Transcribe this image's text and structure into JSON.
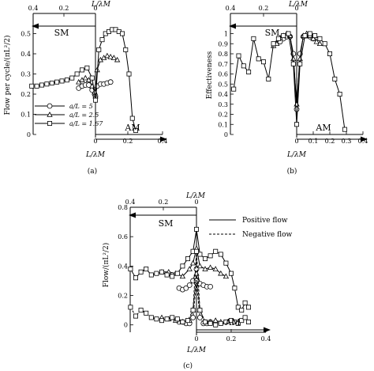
{
  "panels": [
    {
      "id": "a",
      "caption": "(a)",
      "ylabel": "Flow per cycle/(πL²/2)",
      "xlabel_bottom": "L/λM",
      "xlabel_top": "L/λM",
      "sm_label": "SM",
      "am_label": "AM",
      "legend": [
        "a/L = 5",
        "a/L = 2.5",
        "a/L = 1.67"
      ],
      "top_ticks": [
        "0.4",
        "0.2",
        "0"
      ],
      "bottom_ticks": [
        "0",
        "0.2",
        "0.4"
      ],
      "y_ticks": [
        "0",
        "0.1",
        "0.2",
        "0.3",
        "0.4",
        "0.5"
      ]
    },
    {
      "id": "b",
      "caption": "(b)",
      "ylabel": "Effectiveness",
      "xlabel_bottom": "L/λM",
      "xlabel_top": "L/λM",
      "sm_label": "SM",
      "am_label": "AM",
      "top_ticks": [
        "0.4",
        "0.2",
        "0"
      ],
      "bottom_ticks": [
        "0",
        "0.1",
        "0.2",
        "0.3",
        "0.4"
      ],
      "y_ticks": [
        "0",
        "0.1",
        "0.2",
        "0.3",
        "0.4",
        "0.5",
        "0.6",
        "0.7",
        "0.8",
        "0.9",
        "1"
      ]
    },
    {
      "id": "c",
      "caption": "(c)",
      "ylabel": "Flow/(πL²/2)",
      "xlabel_bottom": "L/λM",
      "xlabel_top": "L/λM",
      "sm_label": "SM",
      "am_label": "AM",
      "legend": [
        "Positive flow",
        "Negative flow"
      ],
      "top_ticks": [
        "0.4",
        "0.2",
        "0"
      ],
      "bottom_ticks": [
        "0",
        "0.2",
        "0.4"
      ],
      "y_ticks": [
        "0",
        "0.2",
        "0.4",
        "0.6",
        "0.8"
      ]
    }
  ],
  "chart_data": [
    {
      "type": "line",
      "panel": "a",
      "xlabel": "L/λM",
      "ylabel": "Flow per cycle/(πL²/2)",
      "x_axis": "signed L/λM (negative = SM, positive = AM)",
      "xlim": [
        -0.4,
        0.4
      ],
      "ylim": [
        0,
        0.6
      ],
      "series": [
        {
          "name": "a/L = 5",
          "marker": "circle",
          "x": [
            -0.1,
            -0.08,
            -0.06,
            -0.04,
            -0.02,
            -0.005,
            0,
            0.01,
            0.03,
            0.05,
            0.07,
            0.09
          ],
          "y": [
            0.23,
            0.24,
            0.245,
            0.245,
            0.22,
            0.2,
            0.19,
            0.24,
            0.25,
            0.25,
            0.255,
            0.26
          ]
        },
        {
          "name": "a/L = 2.5",
          "marker": "triangle",
          "x": [
            -0.1,
            -0.08,
            -0.06,
            -0.04,
            -0.02,
            -0.005,
            0,
            0.01,
            0.03,
            0.05,
            0.07,
            0.09,
            0.11,
            0.13
          ],
          "y": [
            0.26,
            0.27,
            0.28,
            0.27,
            0.24,
            0.21,
            0.19,
            0.32,
            0.37,
            0.38,
            0.39,
            0.385,
            0.38,
            0.37
          ]
        },
        {
          "name": "a/L = 1.67",
          "marker": "square",
          "x": [
            -0.38,
            -0.35,
            -0.32,
            -0.29,
            -0.26,
            -0.23,
            -0.2,
            -0.17,
            -0.14,
            -0.11,
            -0.08,
            -0.05,
            -0.02,
            0,
            0.02,
            0.04,
            0.06,
            0.08,
            0.1,
            0.12,
            0.14,
            0.16,
            0.18,
            0.2,
            0.22,
            0.24
          ],
          "y": [
            0.24,
            0.24,
            0.245,
            0.25,
            0.255,
            0.26,
            0.265,
            0.27,
            0.28,
            0.3,
            0.32,
            0.33,
            0.28,
            0.17,
            0.42,
            0.47,
            0.5,
            0.51,
            0.52,
            0.52,
            0.51,
            0.5,
            0.42,
            0.3,
            0.08,
            0.02
          ]
        }
      ]
    },
    {
      "type": "line",
      "panel": "b",
      "xlabel": "L/λM",
      "ylabel": "Effectiveness",
      "x_axis": "signed L/λM (negative = SM, positive = AM)",
      "xlim": [
        -0.4,
        0.4
      ],
      "ylim": [
        0,
        1.2
      ],
      "series": [
        {
          "name": "a/L = 5",
          "marker": "circle",
          "x": [
            -0.1,
            -0.08,
            -0.06,
            -0.04,
            -0.02,
            0,
            0.02,
            0.04,
            0.06,
            0.08,
            0.1
          ],
          "y": [
            0.92,
            0.95,
            0.97,
            0.97,
            0.8,
            0.25,
            0.8,
            0.97,
            0.98,
            0.97,
            0.95
          ]
        },
        {
          "name": "a/L = 2.5",
          "marker": "triangle",
          "x": [
            -0.14,
            -0.12,
            -0.1,
            -0.08,
            -0.06,
            -0.04,
            -0.02,
            0,
            0.02,
            0.04,
            0.06,
            0.08,
            0.1,
            0.12,
            0.14
          ],
          "y": [
            0.88,
            0.9,
            0.96,
            0.98,
            1.0,
            0.98,
            0.75,
            0.3,
            0.75,
            0.98,
            1.0,
            0.98,
            0.95,
            0.92,
            0.9
          ]
        },
        {
          "name": "a/L = 1.67",
          "marker": "square",
          "x": [
            -0.38,
            -0.35,
            -0.32,
            -0.29,
            -0.26,
            -0.23,
            -0.2,
            -0.17,
            -0.14,
            -0.11,
            -0.08,
            -0.05,
            -0.02,
            0,
            0.02,
            0.05,
            0.08,
            0.11,
            0.14,
            0.17,
            0.2,
            0.23,
            0.26,
            0.29
          ],
          "y": [
            0.45,
            0.78,
            0.68,
            0.62,
            0.95,
            0.75,
            0.72,
            0.55,
            0.9,
            0.95,
            0.98,
            1.0,
            0.7,
            0.1,
            0.7,
            0.98,
            1.0,
            0.98,
            0.95,
            0.9,
            0.8,
            0.55,
            0.4,
            0.05
          ]
        }
      ]
    },
    {
      "type": "line",
      "panel": "c",
      "xlabel": "L/λM",
      "ylabel": "Flow/(πL²/2)",
      "x_axis": "signed L/λM (negative = SM, positive = AM)",
      "xlim": [
        -0.4,
        0.4
      ],
      "ylim": [
        -0.05,
        0.8
      ],
      "series": [
        {
          "name": "Positive flow",
          "style": "solid",
          "marker": "circle",
          "x": [
            -0.1,
            -0.08,
            -0.06,
            -0.04,
            -0.02,
            0,
            0.02,
            0.04,
            0.06,
            0.08
          ],
          "y": [
            0.25,
            0.24,
            0.25,
            0.27,
            0.3,
            0.38,
            0.28,
            0.27,
            0.26,
            0.26
          ]
        },
        {
          "name": "Positive flow",
          "style": "solid",
          "marker": "triangle",
          "x": [
            -0.2,
            -0.16,
            -0.12,
            -0.08,
            -0.04,
            -0.02,
            0,
            0.02,
            0.05,
            0.08,
            0.11,
            0.14,
            0.17
          ],
          "y": [
            0.36,
            0.36,
            0.35,
            0.33,
            0.38,
            0.42,
            0.52,
            0.4,
            0.38,
            0.39,
            0.38,
            0.35,
            0.33
          ]
        },
        {
          "name": "Positive flow",
          "style": "solid",
          "marker": "square",
          "x": [
            -0.38,
            -0.35,
            -0.32,
            -0.29,
            -0.26,
            -0.23,
            -0.2,
            -0.17,
            -0.14,
            -0.11,
            -0.08,
            -0.05,
            -0.02,
            0,
            0.02,
            0.05,
            0.08,
            0.11,
            0.14,
            0.17,
            0.2,
            0.22,
            0.24,
            0.26,
            0.28,
            0.3
          ],
          "y": [
            0.38,
            0.32,
            0.36,
            0.38,
            0.34,
            0.35,
            0.36,
            0.34,
            0.33,
            0.35,
            0.4,
            0.45,
            0.5,
            0.65,
            0.48,
            0.45,
            0.47,
            0.5,
            0.48,
            0.42,
            0.35,
            0.25,
            0.12,
            0.1,
            0.15,
            0.12
          ]
        },
        {
          "name": "Negative flow",
          "style": "dashed",
          "marker": "circle",
          "x": [
            -0.1,
            -0.08,
            -0.06,
            -0.04,
            -0.02,
            0,
            0.02,
            0.04,
            0.06,
            0.08
          ],
          "y": [
            0.02,
            0.02,
            0.01,
            0.01,
            0.05,
            0.3,
            0.05,
            0.01,
            0.01,
            0.02
          ]
        },
        {
          "name": "Negative flow",
          "style": "dashed",
          "marker": "triangle",
          "x": [
            -0.2,
            -0.16,
            -0.12,
            -0.08,
            -0.04,
            -0.02,
            0,
            0.02,
            0.05,
            0.08,
            0.11,
            0.14
          ],
          "y": [
            0.05,
            0.04,
            0.03,
            0.02,
            0.03,
            0.1,
            0.35,
            0.1,
            0.02,
            0.02,
            0.03,
            0.02
          ]
        },
        {
          "name": "Negative flow",
          "style": "dashed",
          "marker": "square",
          "x": [
            -0.38,
            -0.35,
            -0.32,
            -0.29,
            -0.26,
            -0.23,
            -0.2,
            -0.17,
            -0.14,
            -0.11,
            -0.08,
            -0.05,
            -0.02,
            0,
            0.02,
            0.05,
            0.08,
            0.11,
            0.14,
            0.17,
            0.2,
            0.22,
            0.24,
            0.26,
            0.28,
            0.3
          ],
          "y": [
            0.12,
            0.06,
            0.1,
            0.08,
            0.05,
            0.04,
            0.03,
            0.04,
            0.05,
            0.04,
            0.02,
            0.03,
            0.1,
            0.5,
            0.1,
            0.02,
            0.01,
            0.0,
            0.01,
            0.02,
            0.03,
            0.02,
            0.01,
            0.03,
            0.05,
            0.02
          ]
        }
      ]
    }
  ]
}
